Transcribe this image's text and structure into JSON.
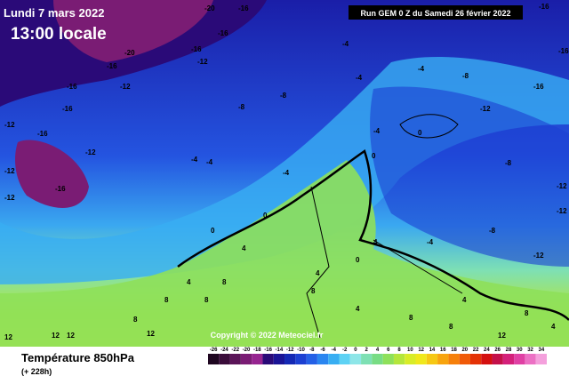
{
  "header": {
    "date": "Lundi 7 mars 2022",
    "time": "13:00 locale",
    "run": "Run GEM 0 Z du Samedi 26 février 2022"
  },
  "footer": {
    "variable": "Température 850hPa",
    "lead": "(+ 228h)",
    "copyright": "Copyright © 2022 Meteociel.fr"
  },
  "legend": {
    "ticks": [
      -26,
      -24,
      -22,
      -20,
      -18,
      -16,
      -14,
      -12,
      -10,
      -8,
      -6,
      -4,
      -2,
      0,
      2,
      4,
      6,
      8,
      10,
      12,
      14,
      16,
      18,
      20,
      22,
      24,
      26,
      28,
      30,
      32,
      34
    ],
    "colors": [
      "#1e0620",
      "#3a0c3a",
      "#5a1458",
      "#7a1c74",
      "#962490",
      "#2a0a78",
      "#1a1496",
      "#1428b4",
      "#1c40d2",
      "#2460e6",
      "#2a86f0",
      "#38aef2",
      "#5ed2f4",
      "#8ee6e8",
      "#7ee0b4",
      "#78dc84",
      "#8ee05a",
      "#b4e63c",
      "#d8ec28",
      "#f0e81c",
      "#f6c814",
      "#f8a40e",
      "#f6800a",
      "#f05a08",
      "#e43206",
      "#d41010",
      "#c4104a",
      "#d4207a",
      "#e040a4",
      "#ec70c4",
      "#f4a0dc"
    ]
  },
  "map": {
    "labels": [
      "-20",
      "-16",
      "-20",
      "-16",
      "-16",
      "-12",
      "-16",
      "-12",
      "-16",
      "-16",
      "-12",
      "-16",
      "-12",
      "-16",
      "-12",
      "-12",
      "-8",
      "-8",
      "-4",
      "-4",
      "-4",
      "0",
      "-4",
      "0",
      "-4",
      "-4",
      "-4",
      "0",
      "0",
      "4",
      "8",
      "4",
      "8",
      "8",
      "8",
      "12",
      "12",
      "12",
      "12",
      "4",
      "0",
      "-4",
      "-8",
      "-12",
      "-8",
      "-12",
      "-12",
      "-16",
      "-16",
      "-16",
      "-12",
      "-8",
      "4",
      "8",
      "4",
      "4",
      "8",
      "4",
      "8",
      "8",
      "12"
    ]
  }
}
